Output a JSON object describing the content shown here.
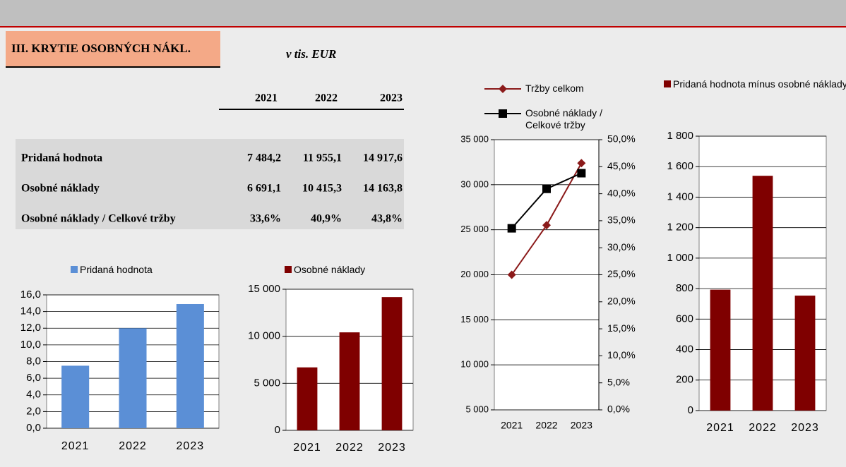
{
  "header": {
    "title": "III. KRYTIE OSOBNÝCH NÁKL.",
    "unit": "v tis. EUR"
  },
  "table": {
    "columns": [
      "2021",
      "2022",
      "2023"
    ],
    "rows": [
      {
        "label": "Pridaná hodnota",
        "values": [
          "7 484,2",
          "11 955,1",
          "14 917,6"
        ]
      },
      {
        "label": "Osobné náklady",
        "values": [
          "6 691,1",
          "10 415,3",
          "14 163,8"
        ]
      },
      {
        "label": "Osobné náklady / Celkové tržby",
        "values": [
          "33,6%",
          "40,9%",
          "43,8%"
        ]
      }
    ]
  },
  "chart_data": [
    {
      "type": "bar",
      "categories": [
        "2021",
        "2022",
        "2023"
      ],
      "series": [
        {
          "name": "Pridaná hodnota",
          "color": "#5b8fd6",
          "values": [
            7.5,
            12.0,
            14.9
          ]
        }
      ],
      "ylim": [
        0,
        16
      ],
      "yticks": [
        {
          "value": 0,
          "label": "0,0"
        },
        {
          "value": 2,
          "label": "2,0"
        },
        {
          "value": 4,
          "label": "4,0"
        },
        {
          "value": 6,
          "label": "6,0"
        },
        {
          "value": 8,
          "label": "8,0"
        },
        {
          "value": 10,
          "label": "10,0"
        },
        {
          "value": 12,
          "label": "12,0"
        },
        {
          "value": 14,
          "label": "14,0"
        },
        {
          "value": 16,
          "label": "16,0"
        }
      ],
      "grid": true
    },
    {
      "type": "bar",
      "categories": [
        "2021",
        "2022",
        "2023"
      ],
      "series": [
        {
          "name": "Osobné náklady",
          "color": "#7f0000",
          "values": [
            6691,
            10415,
            14164
          ]
        }
      ],
      "ylim": [
        0,
        15000
      ],
      "yticks": [
        0,
        {
          "value": 5000,
          "label": "5 000"
        },
        {
          "value": 10000,
          "label": "10 000"
        },
        {
          "value": 15000,
          "label": "15 000"
        }
      ],
      "grid": true
    },
    {
      "type": "line",
      "categories": [
        "2021",
        "2022",
        "2023"
      ],
      "series": [
        {
          "name": "Tržby celkom",
          "color": "#8b1a1a",
          "marker": "diamond",
          "values": [
            20000,
            25500,
            32400
          ]
        },
        {
          "name": "Osobné náklady / Celkové tržby",
          "color": "#000000",
          "marker": "square",
          "axis": "y2",
          "values": [
            33.6,
            40.9,
            43.8
          ]
        }
      ],
      "ylim": [
        5000,
        35000
      ],
      "yticks": [
        {
          "value": 5000,
          "label": "5 000"
        },
        {
          "value": 10000,
          "label": "10 000"
        },
        {
          "value": 15000,
          "label": "15 000"
        },
        {
          "value": 20000,
          "label": "20 000"
        },
        {
          "value": 25000,
          "label": "25 000"
        },
        {
          "value": 30000,
          "label": "30 000"
        },
        {
          "value": 35000,
          "label": "35 000"
        }
      ],
      "y2lim": [
        0,
        50
      ],
      "y2ticks": [
        {
          "value": 0,
          "label": "0,0%"
        },
        {
          "value": 5,
          "label": "5,0%"
        },
        {
          "value": 10,
          "label": "10,0%"
        },
        {
          "value": 15,
          "label": "15,0%"
        },
        {
          "value": 20,
          "label": "20,0%"
        },
        {
          "value": 25,
          "label": "25,0%"
        },
        {
          "value": 30,
          "label": "30,0%"
        },
        {
          "value": 35,
          "label": "35,0%"
        },
        {
          "value": 40,
          "label": "40,0%"
        },
        {
          "value": 45,
          "label": "45,0%"
        },
        {
          "value": 50,
          "label": "50,0%"
        }
      ],
      "grid": true
    },
    {
      "type": "bar",
      "categories": [
        "2021",
        "2022",
        "2023"
      ],
      "series": [
        {
          "name": "Pridaná hodnota mínus osobné náklady",
          "color": "#7f0000",
          "values": [
            793,
            1540,
            754
          ]
        }
      ],
      "ylim": [
        0,
        1800
      ],
      "yticks": [
        0,
        200,
        400,
        600,
        800,
        {
          "value": 1000,
          "label": "1 000"
        },
        {
          "value": 1200,
          "label": "1 200"
        },
        {
          "value": 1400,
          "label": "1 400"
        },
        {
          "value": 1600,
          "label": "1 600"
        },
        {
          "value": 1800,
          "label": "1 800"
        }
      ],
      "grid": true
    }
  ]
}
